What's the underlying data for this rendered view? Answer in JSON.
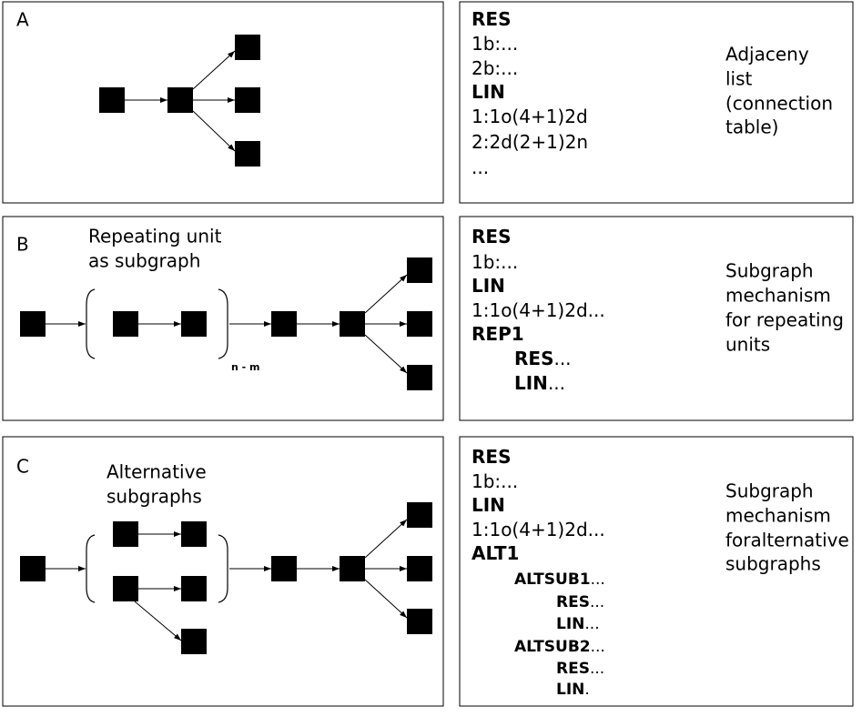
{
  "panels": [
    {
      "label": "A",
      "lines": [
        {
          "bold": "RES"
        },
        {
          "text": "1b:..."
        },
        {
          "text": "2b:..."
        },
        {
          "bold": "LIN"
        },
        {
          "text": "1:1o(4+1)2d"
        },
        {
          "text": "2:2d(2+1)2n"
        },
        {
          "text": "..."
        }
      ],
      "description": [
        "Adjaceny",
        "list",
        "(connection",
        "table)"
      ]
    },
    {
      "label": "B",
      "caption": [
        "Repeating unit",
        "as subgraph"
      ],
      "repeat_label": "n - m",
      "lines": [
        {
          "bold": "RES"
        },
        {
          "text": "1b:..."
        },
        {
          "bold": "LIN"
        },
        {
          "text": "1:1o(4+1)2d..."
        },
        {
          "bold": "REP1"
        },
        {
          "bold": "RES",
          "text": "..."
        },
        {
          "bold": "LIN",
          "text": "..."
        }
      ],
      "description": [
        "Subgraph",
        "mechanism",
        "for repeating",
        "units"
      ]
    },
    {
      "label": "C",
      "caption": [
        "Alternative",
        "subgraphs"
      ],
      "lines": [
        {
          "bold": "RES"
        },
        {
          "text": "1b:..."
        },
        {
          "bold": "LIN"
        },
        {
          "text": "1:1o(4+1)2d..."
        },
        {
          "bold": "ALT1"
        },
        {
          "bold": "ALTSUB1",
          "text": "..."
        },
        {
          "bold": "RES",
          "text": "..."
        },
        {
          "bold": "LIN",
          "text": "..."
        },
        {
          "bold": "ALTSUB2",
          "text": "..."
        },
        {
          "bold": "RES",
          "text": "..."
        },
        {
          "bold": "LIN",
          "text": "."
        }
      ],
      "description": [
        "Subgraph",
        "mechanism",
        "foralternative",
        "subgraphs"
      ]
    }
  ]
}
